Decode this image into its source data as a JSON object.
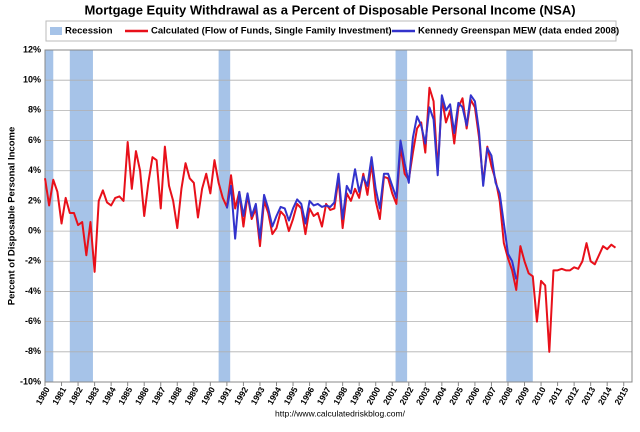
{
  "chart_data": {
    "type": "line",
    "title": "Mortgage Equity Withdrawal as a Percent of Disposable Personal Income (NSA)",
    "y_label": "Percent of Disposable Personal Income",
    "source": "http://www.calculatedriskblog.com/",
    "recessions": {
      "name": "Recession",
      "color": "#a6c3e8",
      "periods": [
        [
          1980.0,
          1980.5
        ],
        [
          1981.5,
          1982.9
        ],
        [
          1990.5,
          1991.2
        ],
        [
          2001.2,
          2001.9
        ],
        [
          2007.9,
          2009.5
        ]
      ]
    },
    "x": [
      1980,
      1980.25,
      1980.5,
      1980.75,
      1981,
      1981.25,
      1981.5,
      1981.75,
      1982,
      1982.25,
      1982.5,
      1982.75,
      1983,
      1983.25,
      1983.5,
      1983.75,
      1984,
      1984.25,
      1984.5,
      1984.75,
      1985,
      1985.25,
      1985.5,
      1985.75,
      1986,
      1986.25,
      1986.5,
      1986.75,
      1987,
      1987.25,
      1987.5,
      1987.75,
      1988,
      1988.25,
      1988.5,
      1988.75,
      1989,
      1989.25,
      1989.5,
      1989.75,
      1990,
      1990.25,
      1990.5,
      1990.75,
      1991,
      1991.25,
      1991.5,
      1991.75,
      1992,
      1992.25,
      1992.5,
      1992.75,
      1993,
      1993.25,
      1993.5,
      1993.75,
      1994,
      1994.25,
      1994.5,
      1994.75,
      1995,
      1995.25,
      1995.5,
      1995.75,
      1996,
      1996.25,
      1996.5,
      1996.75,
      1997,
      1997.25,
      1997.5,
      1997.75,
      1998,
      1998.25,
      1998.5,
      1998.75,
      1999,
      1999.25,
      1999.5,
      1999.75,
      2000,
      2000.25,
      2000.5,
      2000.75,
      2001,
      2001.25,
      2001.5,
      2001.75,
      2002,
      2002.25,
      2002.5,
      2002.75,
      2003,
      2003.25,
      2003.5,
      2003.75,
      2004,
      2004.25,
      2004.5,
      2004.75,
      2005,
      2005.25,
      2005.5,
      2005.75,
      2006,
      2006.25,
      2006.5,
      2006.75,
      2007,
      2007.25,
      2007.5,
      2007.75,
      2008,
      2008.25,
      2008.5,
      2008.75,
      2009,
      2009.25,
      2009.5,
      2009.75,
      2010,
      2010.25,
      2010.5,
      2010.75,
      2011,
      2011.25,
      2011.5,
      2011.75,
      2012,
      2012.25,
      2012.5,
      2012.75,
      2013,
      2013.25,
      2013.5,
      2013.75,
      2014,
      2014.25,
      2014.5
    ],
    "series": [
      {
        "name": "Calculated (Flow of Funds, Single Family Investment)",
        "color": "#e8101a",
        "values": [
          3.5,
          1.7,
          3.4,
          2.6,
          0.5,
          2.2,
          1.2,
          1.2,
          0.4,
          0.6,
          -1.6,
          0.6,
          -2.7,
          2.0,
          2.7,
          1.9,
          1.7,
          2.2,
          2.3,
          2.0,
          5.9,
          2.8,
          5.3,
          4.0,
          1.0,
          3.2,
          4.9,
          4.7,
          1.5,
          5.6,
          3.0,
          2.0,
          0.2,
          2.8,
          4.5,
          3.5,
          3.2,
          0.9,
          2.8,
          3.8,
          2.5,
          4.7,
          3.2,
          2.2,
          1.6,
          3.7,
          1.5,
          2.6,
          0.3,
          2.4,
          0.8,
          1.5,
          -1.0,
          2.0,
          1.2,
          -0.2,
          0.2,
          1.3,
          1.0,
          0.0,
          0.8,
          1.8,
          1.5,
          -0.2,
          1.5,
          1.0,
          1.2,
          0.3,
          1.8,
          1.4,
          1.5,
          3.5,
          0.2,
          2.5,
          2.0,
          2.8,
          2.2,
          3.8,
          2.4,
          4.5,
          2.0,
          0.8,
          3.6,
          3.5,
          2.5,
          1.8,
          5.6,
          3.8,
          3.4,
          5.2,
          6.8,
          7.2,
          5.2,
          9.5,
          8.6,
          4.0,
          8.8,
          7.2,
          8.0,
          5.8,
          8.2,
          8.8,
          6.8,
          8.7,
          8.2,
          6.2,
          3.2,
          5.6,
          4.3,
          3.4,
          2.0,
          -0.8,
          -1.8,
          -2.6,
          -3.9,
          -1.0,
          -2.0,
          -2.8,
          -3.0,
          -6.0,
          -3.3,
          -3.6,
          -8.0,
          -2.6,
          -2.6,
          -2.5,
          -2.6,
          -2.6,
          -2.4,
          -2.5,
          -2.0,
          -0.8,
          -2.0,
          -2.2,
          -1.6,
          -1.0,
          -1.2,
          -0.9,
          -1.1
        ]
      },
      {
        "name": "Kennedy Greenspan MEW (data ended 2008)",
        "color": "#3333cc",
        "values": [
          null,
          null,
          null,
          null,
          null,
          null,
          null,
          null,
          null,
          null,
          null,
          null,
          null,
          null,
          null,
          null,
          null,
          null,
          null,
          null,
          null,
          null,
          null,
          null,
          null,
          null,
          null,
          null,
          null,
          null,
          null,
          null,
          null,
          null,
          null,
          null,
          null,
          null,
          null,
          null,
          null,
          null,
          null,
          null,
          1.5,
          3.0,
          -0.5,
          2.6,
          1.0,
          2.5,
          1.0,
          1.8,
          -0.5,
          2.4,
          1.5,
          0.3,
          1.0,
          1.6,
          1.5,
          0.7,
          1.5,
          2.1,
          1.8,
          0.5,
          2.0,
          1.7,
          1.8,
          1.6,
          1.7,
          1.6,
          1.9,
          3.8,
          0.8,
          3.0,
          2.5,
          4.1,
          2.6,
          3.6,
          3.0,
          4.9,
          2.8,
          1.5,
          3.8,
          3.8,
          3.0,
          2.2,
          6.0,
          4.5,
          3.2,
          6.2,
          7.6,
          7.0,
          5.8,
          8.2,
          7.4,
          3.7,
          9.0,
          8.0,
          8.4,
          6.5,
          8.5,
          8.2,
          7.0,
          9.0,
          8.6,
          6.6,
          3.0,
          5.5,
          5.0,
          3.2,
          2.5,
          0.5,
          -1.5,
          -2.0,
          -3.2,
          null,
          null,
          null,
          null,
          null,
          null,
          null,
          null,
          null,
          null,
          null,
          null,
          null,
          null,
          null,
          null,
          null,
          null,
          null,
          null,
          null,
          null,
          null,
          null
        ]
      }
    ],
    "xlim": [
      1980,
      2015.5
    ],
    "xticks": [
      1980,
      1981,
      1982,
      1983,
      1984,
      1985,
      1986,
      1987,
      1988,
      1989,
      1990,
      1991,
      1992,
      1993,
      1994,
      1995,
      1996,
      1997,
      1998,
      1999,
      2000,
      2001,
      2002,
      2003,
      2004,
      2005,
      2006,
      2007,
      2008,
      2009,
      2010,
      2011,
      2012,
      2013,
      2014,
      2015
    ],
    "ylim": [
      -10,
      12
    ],
    "yticks": [
      {
        "value": -10,
        "label": "-10%"
      },
      {
        "value": -8,
        "label": "-8%"
      },
      {
        "value": -6,
        "label": "-6%"
      },
      {
        "value": -4,
        "label": "-4%"
      },
      {
        "value": -2,
        "label": "-2%"
      },
      {
        "value": 0,
        "label": "0%"
      },
      {
        "value": 2,
        "label": "2%"
      },
      {
        "value": 4,
        "label": "4%"
      },
      {
        "value": 6,
        "label": "6%"
      },
      {
        "value": 8,
        "label": "8%"
      },
      {
        "value": 10,
        "label": "10%"
      },
      {
        "value": 12,
        "label": "12%"
      }
    ],
    "grid": true
  }
}
